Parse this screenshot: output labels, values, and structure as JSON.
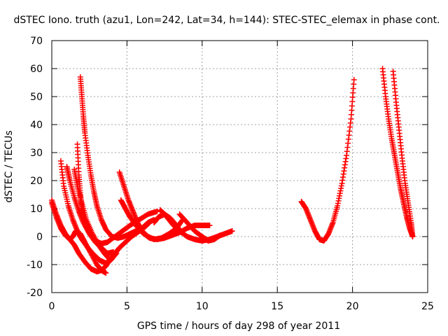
{
  "chart_data": {
    "type": "scatter",
    "title": "dSTEC Iono. truth (azu1, Lon=242, Lat=34, h=144): STEC-STEC_elemax in phase cont.",
    "xlabel": "GPS time / hours of day 298 of year 2011",
    "ylabel": "dSTEC  / TECUs",
    "xlim": [
      0,
      25
    ],
    "ylim": [
      -20,
      70
    ],
    "xticks": [
      0,
      5,
      10,
      15,
      20,
      25
    ],
    "yticks": [
      -20,
      -10,
      0,
      10,
      20,
      30,
      40,
      50,
      60,
      70
    ],
    "grid": true,
    "marker": "plus",
    "color": "#ff0000",
    "arcs": [
      {
        "x": [
          0.0,
          0.3,
          0.6,
          0.9,
          1.2,
          1.5,
          1.8,
          2.2,
          2.6,
          3.0,
          3.3,
          3.6,
          3.9,
          4.2,
          4.5,
          4.9,
          5.3,
          5.7,
          6.1,
          6.5
        ],
        "y": [
          13,
          8,
          4,
          1,
          -1,
          -3,
          -6,
          -9,
          -11.5,
          -12.5,
          -12,
          -10.5,
          -8,
          -6,
          -4,
          -2,
          0,
          1.5,
          3,
          5
        ]
      },
      {
        "x": [
          0.0,
          0.3,
          0.6,
          0.9,
          1.2,
          1.4,
          1.6,
          1.9,
          2.2,
          2.6,
          3.0,
          3.3,
          3.6
        ],
        "y": [
          12,
          7,
          3,
          0.5,
          -1,
          0,
          2,
          1,
          -2,
          -6,
          -10,
          -12,
          -13
        ]
      },
      {
        "x": [
          0.6,
          0.8,
          1.1,
          1.4,
          1.7,
          2.0,
          2.4,
          2.8,
          3.2,
          3.6,
          4.0
        ],
        "y": [
          27,
          18,
          11,
          6,
          2,
          -1,
          -4,
          -6.5,
          -8.5,
          -9.5,
          -8
        ]
      },
      {
        "x": [
          1.0,
          1.2,
          1.5,
          1.8,
          2.1,
          2.5,
          2.9,
          3.3,
          3.7,
          4.1
        ],
        "y": [
          25,
          20,
          14,
          9,
          5,
          1,
          -2,
          -4,
          -6,
          -5.5
        ]
      },
      {
        "x": [
          1.5,
          1.7,
          2.0,
          2.3,
          2.7,
          3.1,
          3.5,
          3.9,
          4.3
        ],
        "y": [
          24,
          18,
          12,
          6,
          1,
          -3,
          -6,
          -8.5,
          -6
        ]
      },
      {
        "x": [
          1.7,
          1.8,
          1.9,
          2.0,
          2.1,
          2.3,
          2.6,
          2.9,
          3.3,
          3.7,
          4.2,
          4.7,
          5.2,
          5.8,
          6.4,
          7.0
        ],
        "y": [
          33,
          22,
          15,
          10,
          7,
          3.5,
          0.5,
          -1.5,
          -2.5,
          -2,
          0,
          2,
          4,
          6,
          8,
          9
        ]
      },
      {
        "x": [
          1.9,
          2.0,
          2.1,
          2.2,
          2.4,
          2.6,
          2.8,
          3.0,
          3.3,
          3.6,
          4.0,
          4.4,
          4.8,
          5.2,
          5.6,
          6.0,
          6.4,
          6.8
        ],
        "y": [
          57,
          50,
          43,
          37,
          29,
          22,
          16,
          11,
          6,
          2.5,
          0,
          -0.5,
          0,
          1,
          2,
          3,
          5,
          6
        ]
      },
      {
        "x": [
          4.5,
          4.8,
          5.1,
          5.4,
          5.7,
          6.0,
          6.4,
          6.8,
          7.3,
          7.8,
          8.3,
          8.7
        ],
        "y": [
          23,
          18,
          13,
          9,
          5,
          2,
          0,
          -1,
          -0.5,
          1,
          3,
          6
        ]
      },
      {
        "x": [
          4.6,
          4.9,
          5.2,
          5.6,
          6.0,
          6.5,
          7.0,
          7.5,
          8.0,
          8.5,
          9.0,
          9.5,
          10.0,
          10.5
        ],
        "y": [
          13,
          10,
          7,
          4,
          1.5,
          -0.5,
          -1,
          -0.5,
          0.5,
          1.5,
          3,
          4,
          4,
          4
        ]
      },
      {
        "x": [
          7.2,
          7.5,
          7.8,
          8.1,
          8.5,
          9.0,
          9.5,
          10.0,
          10.5,
          11.0,
          11.5,
          12.0
        ],
        "y": [
          9.5,
          8,
          6,
          4,
          2,
          0,
          -1,
          -1.5,
          -1,
          0,
          1,
          2
        ]
      },
      {
        "x": [
          6.8,
          7.1,
          7.5,
          7.9,
          8.3,
          8.6
        ],
        "y": [
          5,
          7,
          8,
          6.5,
          4,
          1.5
        ]
      },
      {
        "x": [
          8.5,
          9.0,
          9.5,
          10.0,
          10.4,
          10.8,
          11.2
        ],
        "y": [
          8,
          5,
          2,
          0,
          -1.5,
          -1,
          0.5
        ]
      },
      {
        "x": [
          16.6,
          16.9,
          17.2,
          17.5,
          17.8,
          18.1,
          18.4,
          18.7,
          19.0,
          19.3,
          19.6,
          19.9,
          20.1
        ],
        "y": [
          12.5,
          10,
          6,
          2,
          -1,
          -1.5,
          1,
          5,
          11,
          19,
          29,
          42,
          56
        ]
      },
      {
        "x": [
          22.0,
          22.2,
          22.4,
          22.6,
          22.8,
          23.0,
          23.2,
          23.4,
          23.6,
          23.8,
          24.0
        ],
        "y": [
          60,
          50,
          42,
          35,
          29,
          23,
          17,
          12,
          7,
          3,
          0
        ]
      },
      {
        "x": [
          22.7,
          22.9,
          23.1,
          23.3,
          23.5,
          23.7,
          23.9,
          24.0
        ],
        "y": [
          59,
          48,
          38,
          28,
          19,
          12,
          5,
          0
        ]
      }
    ]
  }
}
